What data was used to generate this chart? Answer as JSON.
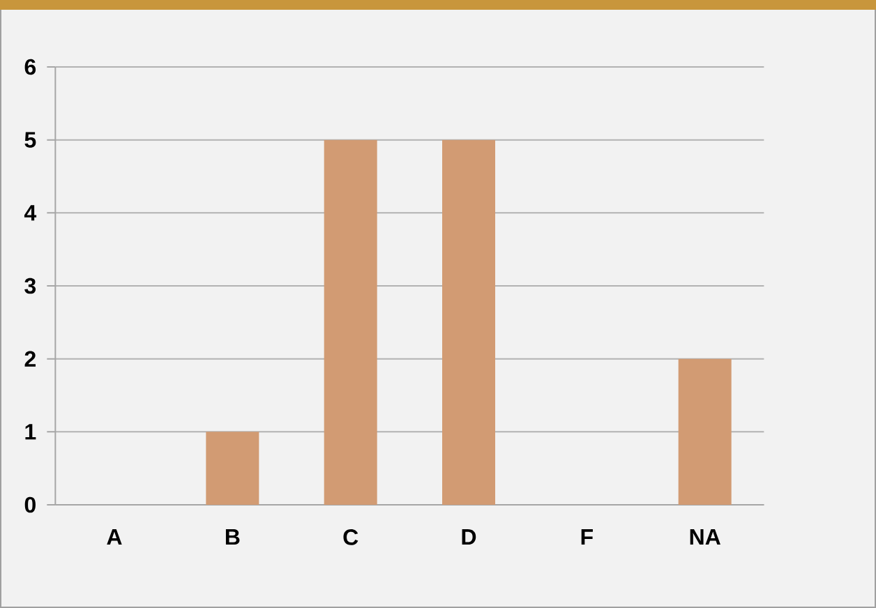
{
  "chart_data": {
    "type": "bar",
    "categories": [
      "A",
      "B",
      "C",
      "D",
      "F",
      "NA"
    ],
    "values": [
      0,
      1,
      5,
      5,
      0,
      2
    ],
    "color": "#d29b73",
    "ylim": [
      0,
      6
    ],
    "yticks": [
      0,
      1,
      2,
      3,
      4,
      5,
      6
    ],
    "grid": "y"
  }
}
